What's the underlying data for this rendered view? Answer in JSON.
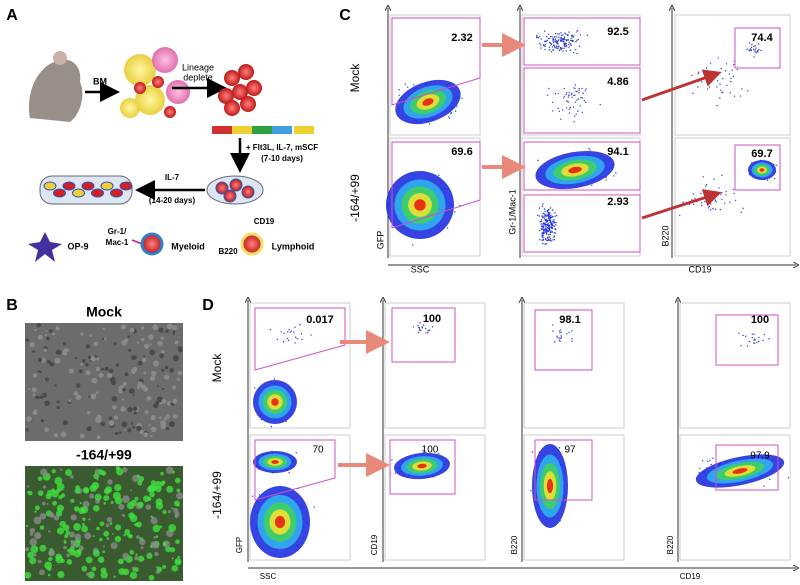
{
  "panel_a": {
    "label": "A",
    "bm": "BM",
    "lineage": [
      "Lineage",
      "deplete"
    ],
    "culture": [
      "+ Flt3L, IL-7, mSCF",
      "(7-10 days)"
    ],
    "il7": [
      "IL-7",
      "(14-20 days)"
    ],
    "legend": {
      "op9": "OP-9",
      "gr1": [
        "Gr-1/",
        "Mac-1"
      ],
      "myeloid": "Myeloid",
      "cd19": "CD19",
      "b220": "B220",
      "lymphoid": "Lymphoid"
    }
  },
  "panel_b": {
    "label": "B",
    "top": "Mock",
    "bottom": "-164/+99"
  },
  "panel_c": {
    "label": "C",
    "rows": [
      "Mock",
      "-164/+99"
    ],
    "axes": {
      "gfp": "GFP",
      "ssc": "SSC",
      "gr1": "Gr-1/Mac-1",
      "b220": "B220",
      "cd19": "CD19"
    },
    "gates": {
      "mock": [
        2.32,
        92.5,
        4.86,
        74.4
      ],
      "treated": [
        69.6,
        94.1,
        2.93,
        69.7
      ]
    }
  },
  "panel_d": {
    "label": "D",
    "rows": [
      "Mock",
      "-164/+99"
    ],
    "y_axes": [
      "GFP",
      "CD19",
      "B220",
      "B220"
    ],
    "x_axes": [
      "SSC",
      "CD19"
    ],
    "gates": {
      "mock": [
        0.017,
        100,
        98.1,
        100
      ],
      "treated": [
        70,
        100,
        97,
        97.9
      ]
    }
  }
}
